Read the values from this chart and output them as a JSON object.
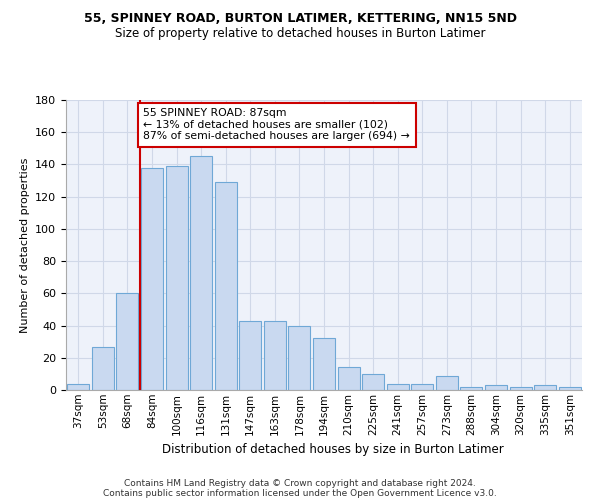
{
  "title1": "55, SPINNEY ROAD, BURTON LATIMER, KETTERING, NN15 5ND",
  "title2": "Size of property relative to detached houses in Burton Latimer",
  "xlabel": "Distribution of detached houses by size in Burton Latimer",
  "ylabel": "Number of detached properties",
  "categories": [
    "37sqm",
    "53sqm",
    "68sqm",
    "84sqm",
    "100sqm",
    "116sqm",
    "131sqm",
    "147sqm",
    "163sqm",
    "178sqm",
    "194sqm",
    "210sqm",
    "225sqm",
    "241sqm",
    "257sqm",
    "273sqm",
    "288sqm",
    "304sqm",
    "320sqm",
    "335sqm",
    "351sqm"
  ],
  "values": [
    4,
    27,
    60,
    138,
    139,
    145,
    129,
    43,
    43,
    40,
    32,
    14,
    10,
    4,
    4,
    9,
    2,
    3,
    2,
    3,
    2
  ],
  "bar_color": "#c9d9f0",
  "bar_edge_color": "#6fa8d6",
  "vline_x_idx": 3,
  "vline_color": "#cc0000",
  "annotation_text": "55 SPINNEY ROAD: 87sqm\n← 13% of detached houses are smaller (102)\n87% of semi-detached houses are larger (694) →",
  "annotation_box_color": "#ffffff",
  "annotation_box_edge": "#cc0000",
  "ylim": [
    0,
    180
  ],
  "yticks": [
    0,
    20,
    40,
    60,
    80,
    100,
    120,
    140,
    160,
    180
  ],
  "grid_color": "#d0d8e8",
  "bg_color": "#eef2fa",
  "footer_line1": "Contains HM Land Registry data © Crown copyright and database right 2024.",
  "footer_line2": "Contains public sector information licensed under the Open Government Licence v3.0."
}
